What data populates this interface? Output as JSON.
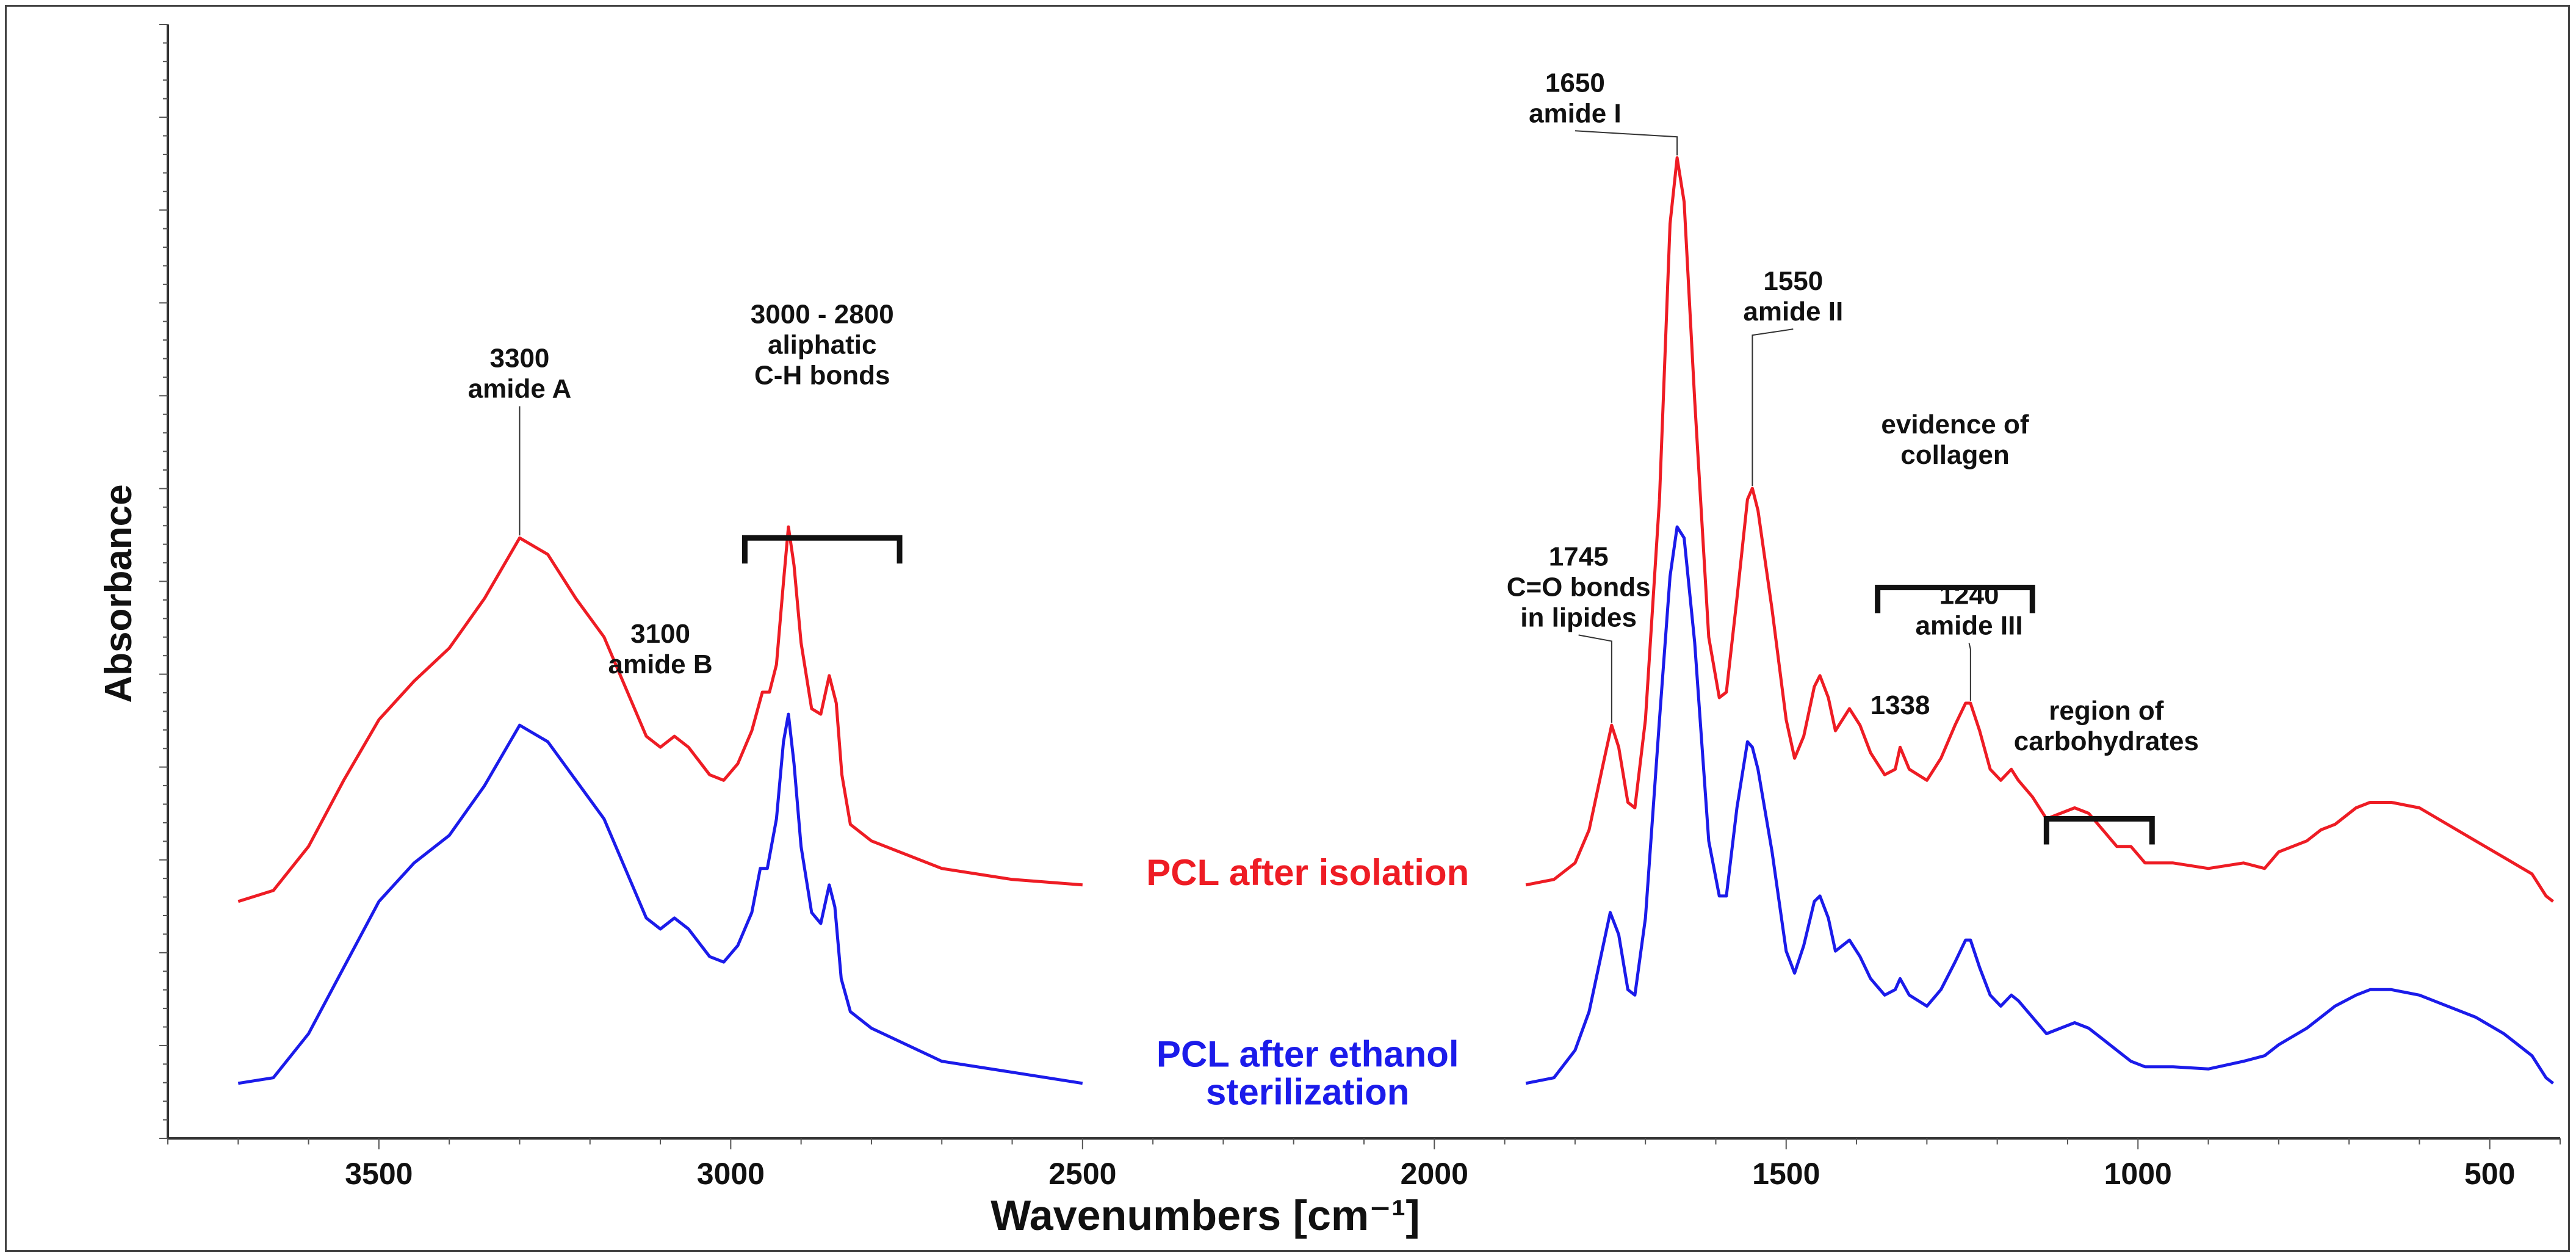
{
  "chart_data": {
    "type": "line",
    "title": "",
    "xlabel": "Wavenumbers [cm⁻¹]",
    "ylabel": "Absorbance",
    "xlim": [
      3800,
      400
    ],
    "ylim": [
      0,
      1
    ],
    "x_reversed": true,
    "x_ticks": [
      3500,
      3000,
      2500,
      2000,
      1500,
      1000,
      500
    ],
    "gap": [
      2500,
      1870
    ],
    "series": [
      {
        "name": "PCL after isolation",
        "color": "#ee1c24",
        "points": [
          [
            3700,
            0.215
          ],
          [
            3650,
            0.225
          ],
          [
            3600,
            0.265
          ],
          [
            3550,
            0.325
          ],
          [
            3500,
            0.38
          ],
          [
            3450,
            0.415
          ],
          [
            3400,
            0.445
          ],
          [
            3350,
            0.49
          ],
          [
            3300,
            0.545
          ],
          [
            3260,
            0.53
          ],
          [
            3220,
            0.49
          ],
          [
            3180,
            0.455
          ],
          [
            3150,
            0.41
          ],
          [
            3120,
            0.365
          ],
          [
            3100,
            0.355
          ],
          [
            3080,
            0.365
          ],
          [
            3060,
            0.355
          ],
          [
            3030,
            0.33
          ],
          [
            3010,
            0.325
          ],
          [
            2990,
            0.34
          ],
          [
            2970,
            0.37
          ],
          [
            2955,
            0.405
          ],
          [
            2945,
            0.405
          ],
          [
            2935,
            0.43
          ],
          [
            2925,
            0.505
          ],
          [
            2918,
            0.555
          ],
          [
            2910,
            0.52
          ],
          [
            2900,
            0.45
          ],
          [
            2885,
            0.39
          ],
          [
            2872,
            0.385
          ],
          [
            2860,
            0.42
          ],
          [
            2850,
            0.395
          ],
          [
            2842,
            0.33
          ],
          [
            2830,
            0.285
          ],
          [
            2800,
            0.27
          ],
          [
            2700,
            0.245
          ],
          [
            2600,
            0.235
          ],
          [
            2500,
            0.23
          ],
          [
            1870,
            0.23
          ],
          [
            1830,
            0.235
          ],
          [
            1800,
            0.25
          ],
          [
            1780,
            0.28
          ],
          [
            1760,
            0.34
          ],
          [
            1748,
            0.375
          ],
          [
            1738,
            0.355
          ],
          [
            1725,
            0.305
          ],
          [
            1715,
            0.3
          ],
          [
            1700,
            0.38
          ],
          [
            1680,
            0.58
          ],
          [
            1665,
            0.83
          ],
          [
            1655,
            0.89
          ],
          [
            1645,
            0.85
          ],
          [
            1630,
            0.67
          ],
          [
            1610,
            0.455
          ],
          [
            1595,
            0.4
          ],
          [
            1585,
            0.405
          ],
          [
            1570,
            0.49
          ],
          [
            1555,
            0.58
          ],
          [
            1548,
            0.59
          ],
          [
            1540,
            0.57
          ],
          [
            1520,
            0.48
          ],
          [
            1500,
            0.38
          ],
          [
            1488,
            0.345
          ],
          [
            1475,
            0.365
          ],
          [
            1460,
            0.41
          ],
          [
            1452,
            0.42
          ],
          [
            1440,
            0.4
          ],
          [
            1430,
            0.37
          ],
          [
            1410,
            0.39
          ],
          [
            1395,
            0.375
          ],
          [
            1380,
            0.35
          ],
          [
            1360,
            0.33
          ],
          [
            1345,
            0.335
          ],
          [
            1338,
            0.355
          ],
          [
            1325,
            0.335
          ],
          [
            1300,
            0.325
          ],
          [
            1280,
            0.345
          ],
          [
            1260,
            0.375
          ],
          [
            1245,
            0.395
          ],
          [
            1238,
            0.395
          ],
          [
            1225,
            0.37
          ],
          [
            1210,
            0.335
          ],
          [
            1195,
            0.325
          ],
          [
            1180,
            0.335
          ],
          [
            1170,
            0.325
          ],
          [
            1150,
            0.31
          ],
          [
            1130,
            0.29
          ],
          [
            1110,
            0.295
          ],
          [
            1090,
            0.3
          ],
          [
            1070,
            0.295
          ],
          [
            1050,
            0.28
          ],
          [
            1030,
            0.265
          ],
          [
            1010,
            0.265
          ],
          [
            990,
            0.25
          ],
          [
            950,
            0.25
          ],
          [
            900,
            0.245
          ],
          [
            850,
            0.25
          ],
          [
            820,
            0.245
          ],
          [
            800,
            0.26
          ],
          [
            760,
            0.27
          ],
          [
            740,
            0.28
          ],
          [
            720,
            0.285
          ],
          [
            690,
            0.3
          ],
          [
            670,
            0.305
          ],
          [
            640,
            0.305
          ],
          [
            600,
            0.3
          ],
          [
            560,
            0.285
          ],
          [
            520,
            0.27
          ],
          [
            480,
            0.255
          ],
          [
            440,
            0.24
          ],
          [
            420,
            0.22
          ],
          [
            410,
            0.215
          ]
        ]
      },
      {
        "name": "PCL after ethanol sterilization",
        "color": "#1b1bea",
        "points": [
          [
            3700,
            0.05
          ],
          [
            3650,
            0.055
          ],
          [
            3600,
            0.095
          ],
          [
            3550,
            0.155
          ],
          [
            3500,
            0.215
          ],
          [
            3450,
            0.25
          ],
          [
            3400,
            0.275
          ],
          [
            3350,
            0.32
          ],
          [
            3300,
            0.375
          ],
          [
            3260,
            0.36
          ],
          [
            3220,
            0.325
          ],
          [
            3180,
            0.29
          ],
          [
            3150,
            0.245
          ],
          [
            3120,
            0.2
          ],
          [
            3100,
            0.19
          ],
          [
            3080,
            0.2
          ],
          [
            3060,
            0.19
          ],
          [
            3030,
            0.165
          ],
          [
            3010,
            0.16
          ],
          [
            2990,
            0.175
          ],
          [
            2970,
            0.205
          ],
          [
            2958,
            0.245
          ],
          [
            2948,
            0.245
          ],
          [
            2935,
            0.29
          ],
          [
            2925,
            0.36
          ],
          [
            2918,
            0.385
          ],
          [
            2910,
            0.34
          ],
          [
            2900,
            0.265
          ],
          [
            2885,
            0.205
          ],
          [
            2872,
            0.195
          ],
          [
            2860,
            0.23
          ],
          [
            2852,
            0.21
          ],
          [
            2843,
            0.145
          ],
          [
            2830,
            0.115
          ],
          [
            2800,
            0.1
          ],
          [
            2700,
            0.07
          ],
          [
            2600,
            0.06
          ],
          [
            2500,
            0.05
          ],
          [
            1870,
            0.05
          ],
          [
            1830,
            0.055
          ],
          [
            1800,
            0.08
          ],
          [
            1780,
            0.115
          ],
          [
            1765,
            0.16
          ],
          [
            1750,
            0.205
          ],
          [
            1738,
            0.185
          ],
          [
            1725,
            0.135
          ],
          [
            1715,
            0.13
          ],
          [
            1700,
            0.2
          ],
          [
            1680,
            0.38
          ],
          [
            1665,
            0.51
          ],
          [
            1655,
            0.555
          ],
          [
            1645,
            0.545
          ],
          [
            1630,
            0.45
          ],
          [
            1610,
            0.27
          ],
          [
            1595,
            0.22
          ],
          [
            1585,
            0.22
          ],
          [
            1570,
            0.3
          ],
          [
            1555,
            0.36
          ],
          [
            1548,
            0.355
          ],
          [
            1540,
            0.335
          ],
          [
            1520,
            0.26
          ],
          [
            1500,
            0.17
          ],
          [
            1488,
            0.15
          ],
          [
            1475,
            0.175
          ],
          [
            1460,
            0.215
          ],
          [
            1452,
            0.22
          ],
          [
            1440,
            0.2
          ],
          [
            1430,
            0.17
          ],
          [
            1410,
            0.18
          ],
          [
            1395,
            0.165
          ],
          [
            1380,
            0.145
          ],
          [
            1360,
            0.13
          ],
          [
            1345,
            0.135
          ],
          [
            1338,
            0.145
          ],
          [
            1325,
            0.13
          ],
          [
            1300,
            0.12
          ],
          [
            1280,
            0.135
          ],
          [
            1260,
            0.16
          ],
          [
            1245,
            0.18
          ],
          [
            1238,
            0.18
          ],
          [
            1225,
            0.155
          ],
          [
            1210,
            0.13
          ],
          [
            1195,
            0.12
          ],
          [
            1180,
            0.13
          ],
          [
            1170,
            0.125
          ],
          [
            1150,
            0.11
          ],
          [
            1130,
            0.095
          ],
          [
            1110,
            0.1
          ],
          [
            1090,
            0.105
          ],
          [
            1070,
            0.1
          ],
          [
            1050,
            0.09
          ],
          [
            1030,
            0.08
          ],
          [
            1010,
            0.07
          ],
          [
            990,
            0.065
          ],
          [
            950,
            0.065
          ],
          [
            900,
            0.063
          ],
          [
            850,
            0.07
          ],
          [
            820,
            0.075
          ],
          [
            800,
            0.085
          ],
          [
            760,
            0.1
          ],
          [
            740,
            0.11
          ],
          [
            720,
            0.12
          ],
          [
            690,
            0.13
          ],
          [
            670,
            0.135
          ],
          [
            640,
            0.135
          ],
          [
            600,
            0.13
          ],
          [
            560,
            0.12
          ],
          [
            520,
            0.11
          ],
          [
            480,
            0.095
          ],
          [
            440,
            0.075
          ],
          [
            420,
            0.055
          ],
          [
            410,
            0.05
          ]
        ]
      }
    ],
    "series_labels": [
      {
        "lines": [
          "PCL after isolation"
        ],
        "x": 2180,
        "y": 0.23
      },
      {
        "lines": [
          "PCL after ethanol",
          "sterilization"
        ],
        "x": 2180,
        "y": 0.065
      }
    ],
    "annotations": [
      {
        "lines": [
          "3300",
          "amide A"
        ],
        "x": 3300,
        "y": 0.7,
        "leader": [
          3300,
          0.545
        ]
      },
      {
        "lines": [
          "3100",
          "amide B"
        ],
        "x": 3100,
        "y": 0.45,
        "leader": null
      },
      {
        "lines": [
          "3000 - 2800",
          "aliphatic",
          "C-H bonds"
        ],
        "x": 2870,
        "y": 0.74,
        "leader": null
      },
      {
        "lines": [
          "1650",
          "amide I"
        ],
        "x": 1800,
        "y": 0.95,
        "leader": [
          1655,
          0.89
        ]
      },
      {
        "lines": [
          "1550",
          "amide II"
        ],
        "x": 1490,
        "y": 0.77,
        "leader": [
          1548,
          0.59
        ]
      },
      {
        "lines": [
          "1745",
          "C=O bonds",
          "in lipides"
        ],
        "x": 1795,
        "y": 0.52,
        "leader": [
          1748,
          0.375
        ]
      },
      {
        "lines": [
          "evidence of",
          "collagen"
        ],
        "x": 1260,
        "y": 0.64,
        "leader": null
      },
      {
        "lines": [
          "1338"
        ],
        "x": 1338,
        "y": 0.385,
        "leader": null
      },
      {
        "lines": [
          "1240",
          "amide III"
        ],
        "x": 1240,
        "y": 0.485,
        "leader": [
          1238,
          0.395
        ]
      },
      {
        "lines": [
          "region of",
          "carbohydrates"
        ],
        "x": 1045,
        "y": 0.38,
        "leader": null
      }
    ],
    "brackets": [
      {
        "name": "aliphatic",
        "x1": 2980,
        "x2": 2760,
        "y": 0.545
      },
      {
        "name": "collagen",
        "x1": 1370,
        "x2": 1150,
        "y": 0.5
      },
      {
        "name": "carbohydrates",
        "x1": 1130,
        "x2": 980,
        "y": 0.29
      }
    ]
  }
}
